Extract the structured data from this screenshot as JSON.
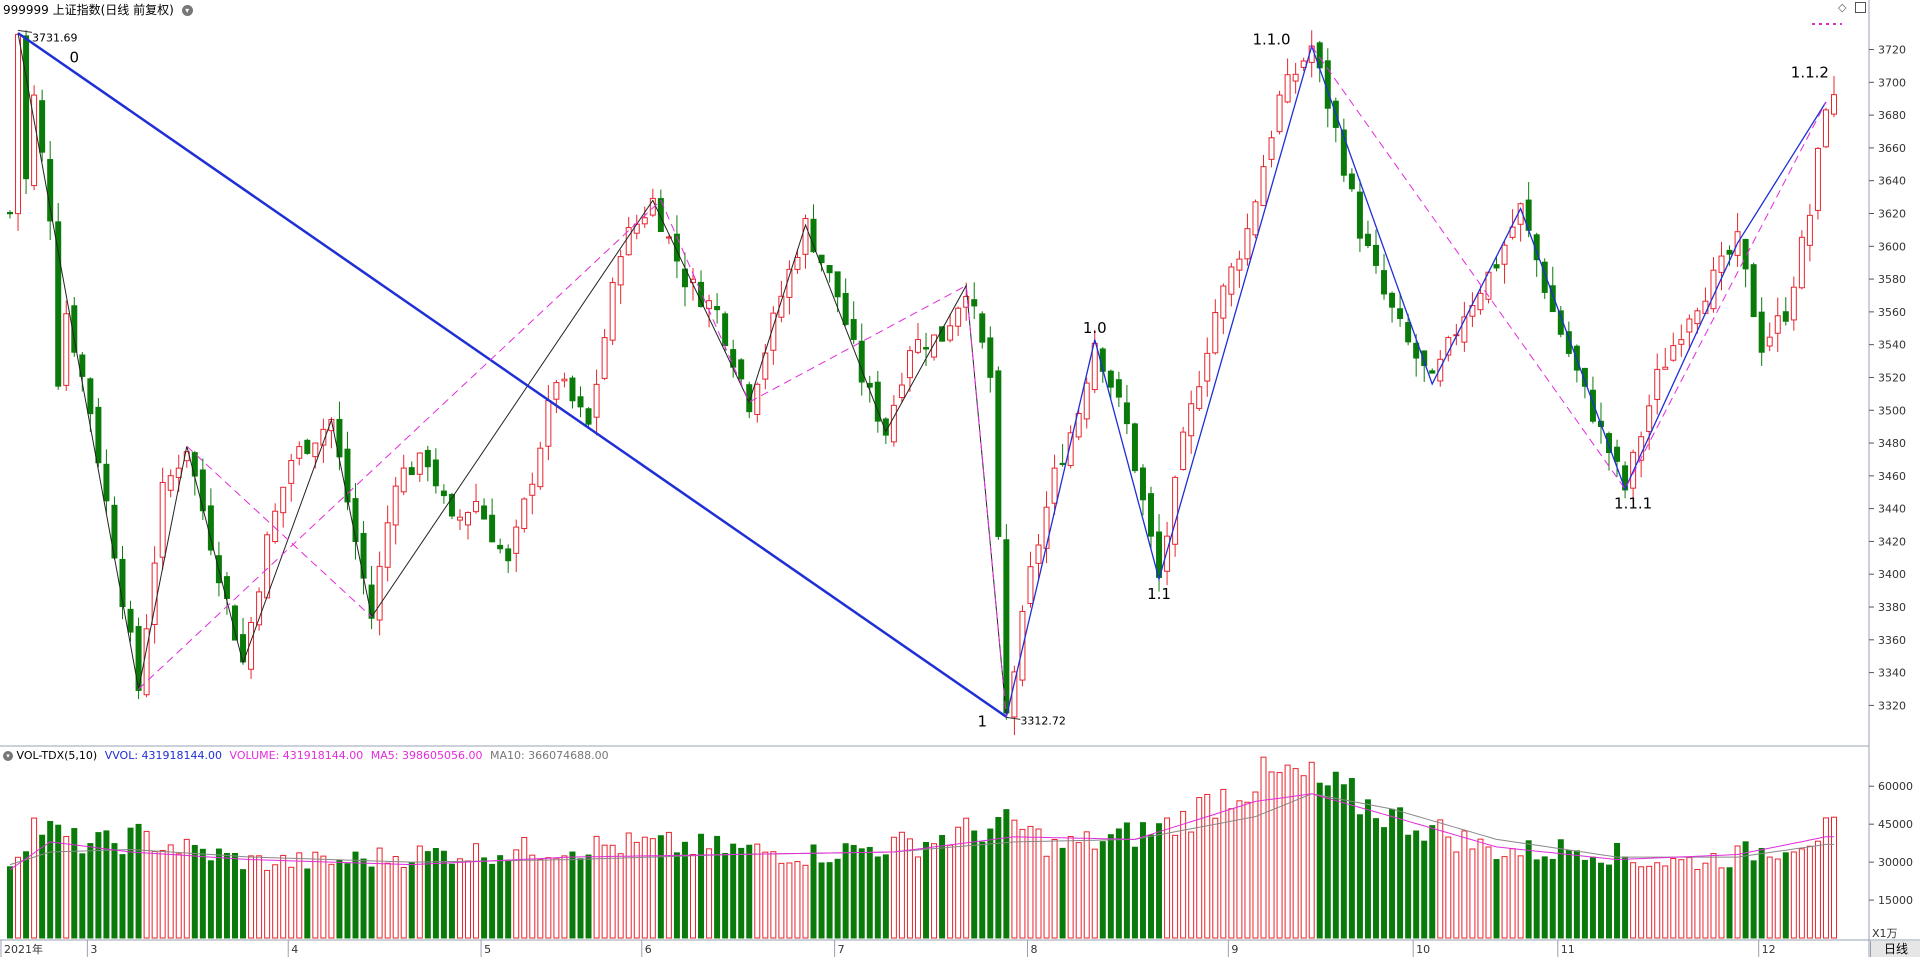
{
  "header": {
    "title": "999999 上证指数(日线 前复权)",
    "dropdown_icon": "chevron-down-circle-icon",
    "diamond_icon": "diamond-icon",
    "panel_icon": "panel-toggle-icon"
  },
  "volume_header": {
    "indicator": "VOL-TDX(5,10)",
    "vvol": "VVOL: 431918144.00",
    "volume": "VOLUME: 431918144.00",
    "ma5": "MA5: 398605056.00",
    "ma10": "MA10: 366074688.00"
  },
  "footer": {
    "unit": "X1万",
    "period_button": "日线"
  },
  "colors": {
    "up": "#e8242d",
    "down": "#0a7a0a",
    "wave_black": "#222222",
    "wave_blue": "#1f2fd6",
    "wave_pink": "#e22bdc",
    "ma5": "#e22bdc",
    "ma10": "#888888"
  },
  "chart_data": [
    {
      "type": "candlestick",
      "y_ticks": [
        3320,
        3340,
        3360,
        3380,
        3400,
        3420,
        3440,
        3460,
        3480,
        3500,
        3520,
        3540,
        3560,
        3580,
        3600,
        3620,
        3640,
        3660,
        3680,
        3700,
        3720
      ],
      "ylim": [
        3305,
        3738
      ],
      "x_ticks": [
        {
          "label": "2021年",
          "i": 0
        },
        {
          "label": "3",
          "i": 10
        },
        {
          "label": "4",
          "i": 35
        },
        {
          "label": "5",
          "i": 59
        },
        {
          "label": "6",
          "i": 79
        },
        {
          "label": "7",
          "i": 103
        },
        {
          "label": "8",
          "i": 127
        },
        {
          "label": "9",
          "i": 152
        },
        {
          "label": "10",
          "i": 175
        },
        {
          "label": "11",
          "i": 193
        },
        {
          "label": "12",
          "i": 218
        }
      ],
      "extreme_labels": [
        {
          "text": "3731.69",
          "i": 1,
          "price": 3731.69,
          "side": "high"
        },
        {
          "text": "3312.72",
          "i": 124,
          "price": 3312.72,
          "side": "low"
        }
      ],
      "wave_labels": [
        {
          "text": "0",
          "i": 8,
          "price": 3712
        },
        {
          "text": "1",
          "i": 121,
          "price": 3307
        },
        {
          "text": "1.0",
          "i": 135,
          "price": 3547
        },
        {
          "text": "1.1",
          "i": 143,
          "price": 3385
        },
        {
          "text": "1.1.0",
          "i": 157,
          "price": 3723
        },
        {
          "text": "1.1.1",
          "i": 202,
          "price": 3440
        },
        {
          "text": "1.1.2",
          "i": 224,
          "price": 3703
        }
      ],
      "wave_lines": [
        {
          "style": "black",
          "points": [
            [
              1,
              3730
            ],
            [
              16,
              3330
            ],
            [
              22,
              3478
            ],
            [
              29,
              3346
            ],
            [
              40,
              3494
            ],
            [
              45,
              3374
            ],
            [
              80,
              3628
            ],
            [
              92,
              3505
            ],
            [
              99,
              3613
            ],
            [
              109,
              3487
            ],
            [
              119,
              3576
            ],
            [
              124,
              3313
            ]
          ]
        },
        {
          "style": "blue-thick",
          "points": [
            [
              1,
              3730
            ],
            [
              124,
              3313
            ]
          ]
        },
        {
          "style": "blue",
          "points": [
            [
              124,
              3313
            ],
            [
              135,
              3543
            ],
            [
              143,
              3397
            ],
            [
              162,
              3722
            ],
            [
              177,
              3516
            ],
            [
              188,
              3623
            ],
            [
              201,
              3452
            ],
            [
              215,
              3602
            ],
            [
              215,
              3602
            ],
            [
              226,
              3688
            ]
          ]
        },
        {
          "style": "pink-dashed",
          "points": [
            [
              16,
              3330
            ],
            [
              81,
              3628
            ],
            [
              92,
              3505
            ],
            [
              119,
              3576
            ],
            [
              124,
              3313
            ]
          ]
        },
        {
          "style": "pink-dashed",
          "points": [
            [
              22,
              3478
            ],
            [
              45,
              3374
            ]
          ]
        },
        {
          "style": "pink-dashed",
          "points": [
            [
              162,
              3722
            ],
            [
              201,
              3452
            ],
            [
              226,
              3688
            ]
          ]
        }
      ],
      "path": [
        [
          0,
          3620
        ],
        [
          1,
          3730
        ],
        [
          2,
          3640
        ],
        [
          3,
          3690
        ],
        [
          5,
          3620
        ],
        [
          6,
          3520
        ],
        [
          7,
          3560
        ],
        [
          10,
          3500
        ],
        [
          16,
          3330
        ],
        [
          19,
          3450
        ],
        [
          22,
          3478
        ],
        [
          25,
          3420
        ],
        [
          29,
          3346
        ],
        [
          32,
          3420
        ],
        [
          35,
          3470
        ],
        [
          40,
          3494
        ],
        [
          43,
          3420
        ],
        [
          45,
          3374
        ],
        [
          48,
          3460
        ],
        [
          52,
          3470
        ],
        [
          55,
          3430
        ],
        [
          58,
          3445
        ],
        [
          62,
          3405
        ],
        [
          65,
          3460
        ],
        [
          68,
          3520
        ],
        [
          72,
          3490
        ],
        [
          76,
          3600
        ],
        [
          80,
          3628
        ],
        [
          84,
          3580
        ],
        [
          88,
          3560
        ],
        [
          92,
          3505
        ],
        [
          96,
          3570
        ],
        [
          99,
          3613
        ],
        [
          103,
          3570
        ],
        [
          106,
          3520
        ],
        [
          109,
          3487
        ],
        [
          112,
          3540
        ],
        [
          116,
          3545
        ],
        [
          119,
          3576
        ],
        [
          122,
          3520
        ],
        [
          124,
          3313
        ],
        [
          127,
          3400
        ],
        [
          130,
          3460
        ],
        [
          133,
          3500
        ],
        [
          135,
          3543
        ],
        [
          139,
          3490
        ],
        [
          143,
          3397
        ],
        [
          146,
          3480
        ],
        [
          150,
          3560
        ],
        [
          154,
          3610
        ],
        [
          158,
          3690
        ],
        [
          162,
          3722
        ],
        [
          165,
          3670
        ],
        [
          168,
          3610
        ],
        [
          171,
          3570
        ],
        [
          174,
          3540
        ],
        [
          177,
          3516
        ],
        [
          181,
          3560
        ],
        [
          185,
          3590
        ],
        [
          188,
          3623
        ],
        [
          192,
          3560
        ],
        [
          196,
          3510
        ],
        [
          201,
          3452
        ],
        [
          205,
          3520
        ],
        [
          209,
          3560
        ],
        [
          212,
          3580
        ],
        [
          215,
          3602
        ],
        [
          218,
          3540
        ],
        [
          221,
          3560
        ],
        [
          224,
          3620
        ],
        [
          226,
          3688
        ]
      ]
    },
    {
      "type": "volume-bar",
      "y_ticks": [
        15000,
        30000,
        45000,
        60000
      ],
      "ylim": [
        0,
        68000
      ],
      "unit": "X1万",
      "path": [
        [
          0,
          30000
        ],
        [
          3,
          45000
        ],
        [
          8,
          38000
        ],
        [
          12,
          37000
        ],
        [
          16,
          40000
        ],
        [
          22,
          35000
        ],
        [
          30,
          30000
        ],
        [
          40,
          30000
        ],
        [
          50,
          33000
        ],
        [
          60,
          34000
        ],
        [
          70,
          36000
        ],
        [
          80,
          37000
        ],
        [
          90,
          35000
        ],
        [
          100,
          33000
        ],
        [
          108,
          36000
        ],
        [
          114,
          38000
        ],
        [
          119,
          42000
        ],
        [
          125,
          45000
        ],
        [
          130,
          36000
        ],
        [
          135,
          38000
        ],
        [
          140,
          41000
        ],
        [
          145,
          45000
        ],
        [
          150,
          55000
        ],
        [
          155,
          62000
        ],
        [
          160,
          64000
        ],
        [
          165,
          58000
        ],
        [
          172,
          48000
        ],
        [
          178,
          42000
        ],
        [
          184,
          35000
        ],
        [
          190,
          34000
        ],
        [
          196,
          36000
        ],
        [
          202,
          31000
        ],
        [
          208,
          30000
        ],
        [
          214,
          32000
        ],
        [
          220,
          36000
        ],
        [
          226,
          42000
        ]
      ],
      "ma5_path": [
        [
          0,
          27000
        ],
        [
          5,
          38000
        ],
        [
          15,
          34000
        ],
        [
          30,
          31000
        ],
        [
          50,
          29000
        ],
        [
          70,
          32000
        ],
        [
          90,
          33000
        ],
        [
          110,
          34000
        ],
        [
          125,
          40000
        ],
        [
          140,
          39000
        ],
        [
          155,
          54000
        ],
        [
          162,
          57000
        ],
        [
          172,
          48000
        ],
        [
          185,
          36000
        ],
        [
          200,
          31000
        ],
        [
          215,
          33000
        ],
        [
          226,
          40000
        ]
      ],
      "ma10_path": [
        [
          0,
          29000
        ],
        [
          5,
          34000
        ],
        [
          15,
          35000
        ],
        [
          30,
          32000
        ],
        [
          50,
          30000
        ],
        [
          70,
          31000
        ],
        [
          90,
          33000
        ],
        [
          110,
          34000
        ],
        [
          125,
          38000
        ],
        [
          140,
          39000
        ],
        [
          155,
          48000
        ],
        [
          162,
          57000
        ],
        [
          172,
          51000
        ],
        [
          185,
          39000
        ],
        [
          200,
          32000
        ],
        [
          215,
          32000
        ],
        [
          226,
          37000
        ]
      ]
    }
  ]
}
